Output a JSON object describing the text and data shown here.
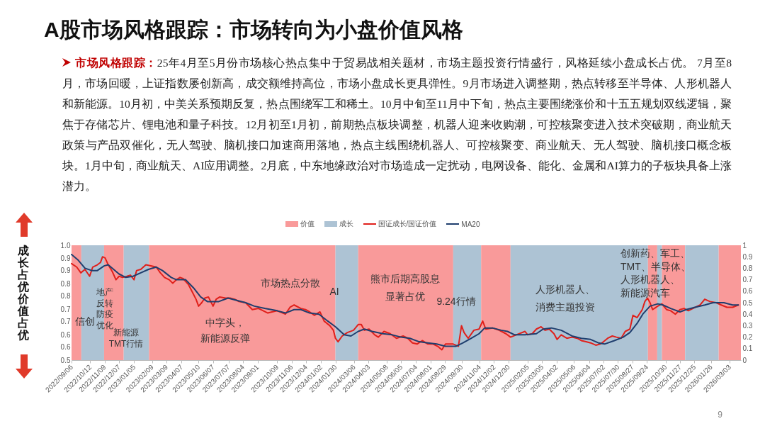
{
  "chart_data": {
    "type": "line",
    "title": "A股市场风格跟踪：市场转向为小盘价值风格",
    "subtitle": "市场风格跟踪：25年4月至5月份市场核心热点集中于贸易战相关题材，市场主题投资行情盛行，风格延续小盘成长占优。 7月至8月，市场回暖，上证指数屡创新高，成交额维持高位，市场小盘成长更具弹性。9月市场进入调整期，热点转移至半导体、人形机器人和新能源。10月初，中美关系预期反复，热点围绕军工和稀土。10月中旬至11月中下旬，热点主要围绕涨价和十五五规划双线逻辑，聚焦于存储芯片、锂电池和量子科技。12月初至1月初，前期热点板块调整，机器人迎来收购潮，可控核聚变进入技术突破期，商业航天政策与产品双催化，无人驾驶、脑机接口加速商用落地，热点主线围绕机器人、可控核聚变、商业航天、无人驾驶、脑机接口概念板块。1月中旬，商业航天、AI应用调整。2月底，中东地缘政治对市场造成一定扰动，电网设备、能化、金属和AI算力的子板块具备上涨潜力。",
    "ylabel": "成长占优价值占优",
    "xlim": [
      "2022-09-06",
      "2026-03-25"
    ],
    "xticks": [
      {
        "value": "2022-09-06",
        "label": "2022/09/06"
      },
      {
        "value": "2022-10-12",
        "label": "2022/10/12"
      },
      {
        "value": "2022-11-09",
        "label": "2022/11/09"
      },
      {
        "value": "2022-12-07",
        "label": "2022/12/07"
      },
      {
        "value": "2023-01-05",
        "label": "2023/01/05"
      },
      {
        "value": "2023-02-09",
        "label": "2023/02/09"
      },
      {
        "value": "2023-03-09",
        "label": "2023/03/09"
      },
      {
        "value": "2023-04-07",
        "label": "2023/04/07"
      },
      {
        "value": "2023-05-10",
        "label": "2023/05/10"
      },
      {
        "value": "2023-06-07",
        "label": "2023/06/07"
      },
      {
        "value": "2023-07-07",
        "label": "2023/07/07"
      },
      {
        "value": "2023-08-04",
        "label": "2023/08/04"
      },
      {
        "value": "2023-09-01",
        "label": "2023/09/01"
      },
      {
        "value": "2023-10-09",
        "label": "2023/10/09"
      },
      {
        "value": "2023-11-06",
        "label": "2023/11/06"
      },
      {
        "value": "2023-12-04",
        "label": "2023/12/04"
      },
      {
        "value": "2024-01-02",
        "label": "2024/01/02"
      },
      {
        "value": "2024-01-30",
        "label": "2024/01/30"
      },
      {
        "value": "2024-03-06",
        "label": "2024/03/06"
      },
      {
        "value": "2024-04-03",
        "label": "2024/04/03"
      },
      {
        "value": "2024-05-08",
        "label": "2024/05/08"
      },
      {
        "value": "2024-06-05",
        "label": "2024/06/05"
      },
      {
        "value": "2024-07-04",
        "label": "2024/07/04"
      },
      {
        "value": "2024-08-01",
        "label": "2024/08/01"
      },
      {
        "value": "2024-08-29",
        "label": "2024/08/29"
      },
      {
        "value": "2024-09-30",
        "label": "2024/09/30"
      },
      {
        "value": "2024-11-04",
        "label": "2024/11/04"
      },
      {
        "value": "2024-12-02",
        "label": "2024/12/02"
      },
      {
        "value": "2024-12-30",
        "label": "2024/12/30"
      },
      {
        "value": "2025-02-05",
        "label": "2025/02/05"
      },
      {
        "value": "2025-03-05",
        "label": "2025/03/05"
      },
      {
        "value": "2025-04-02",
        "label": "2025/04/02"
      },
      {
        "value": "2025-05-06",
        "label": "2025/05/06"
      },
      {
        "value": "2025-06-04",
        "label": "2025/06/04"
      },
      {
        "value": "2025-07-02",
        "label": "2025/07/02"
      },
      {
        "value": "2025-07-30",
        "label": "2025/07/30"
      },
      {
        "value": "2025-08-27",
        "label": "2025/08/27"
      },
      {
        "value": "2025-09-24",
        "label": "2025/09/24"
      },
      {
        "value": "2025-10-30",
        "label": "2025/10/30"
      },
      {
        "value": "2025-11-27",
        "label": "2025/11/27"
      },
      {
        "value": "2025-12-25",
        "label": "2025/12/25"
      },
      {
        "value": "2026-01-26",
        "label": "2026/01/26"
      },
      {
        "value": "2026-03-03",
        "label": "2026/03/03"
      }
    ],
    "ylim": [
      0.5,
      1.0
    ],
    "yticks": [
      0.5,
      {
        "value": 0.556,
        "label": "0.6"
      },
      {
        "value": 0.611,
        "label": "0.6"
      },
      {
        "value": 0.667,
        "label": "0.7"
      },
      {
        "value": 0.722,
        "label": "0.7"
      },
      {
        "value": 0.778,
        "label": "0.8"
      },
      {
        "value": 0.833,
        "label": "0.8"
      },
      {
        "value": 0.889,
        "label": "0.9"
      },
      {
        "value": 0.944,
        "label": "0.9"
      },
      {
        "value": 1.0,
        "label": "1.0"
      }
    ],
    "y2lim": [
      0,
      1
    ],
    "y2ticks": [
      0,
      0.1,
      0.2,
      0.3,
      0.4,
      0.5,
      0.6,
      0.7,
      0.8,
      0.9,
      1
    ],
    "legend": "top",
    "bands": [
      {
        "axis": "x",
        "from": "2022-09-06",
        "to": "2022-09-25",
        "label": "价值",
        "color": "#f99a9a"
      },
      {
        "axis": "x",
        "from": "2022-09-25",
        "to": "2022-11-08",
        "label": "成长",
        "color": "#adc3d4"
      },
      {
        "axis": "x",
        "from": "2022-11-08",
        "to": "2022-12-16",
        "color": "#f99a9a"
      },
      {
        "axis": "x",
        "from": "2022-12-16",
        "to": "2023-02-03",
        "color": "#adc3d4"
      },
      {
        "axis": "x",
        "from": "2023-02-03",
        "to": "2024-01-30",
        "color": "#f99a9a"
      },
      {
        "axis": "x",
        "from": "2024-01-30",
        "to": "2024-03-14",
        "color": "#adc3d4"
      },
      {
        "axis": "x",
        "from": "2024-03-14",
        "to": "2024-09-14",
        "color": "#f99a9a"
      },
      {
        "axis": "x",
        "from": "2024-09-14",
        "to": "2024-11-07",
        "color": "#adc3d4"
      },
      {
        "axis": "x",
        "from": "2024-11-07",
        "to": "2025-01-03",
        "color": "#f99a9a"
      },
      {
        "axis": "x",
        "from": "2025-01-03",
        "to": "2025-09-26",
        "color": "#adc3d4"
      },
      {
        "axis": "x",
        "from": "2025-09-26",
        "to": "2025-10-14",
        "color": "#f99a9a"
      },
      {
        "axis": "x",
        "from": "2025-10-14",
        "to": "2025-10-23",
        "color": "#adc3d4"
      },
      {
        "axis": "x",
        "from": "2025-10-23",
        "to": "2025-12-07",
        "color": "#f99a9a"
      },
      {
        "axis": "x",
        "from": "2025-12-07",
        "to": "2026-02-10",
        "color": "#adc3d4"
      },
      {
        "axis": "x",
        "from": "2026-02-10",
        "to": "2026-03-25",
        "color": "#f99a9a"
      }
    ],
    "annotations": [
      "信创",
      "地产反转防疫优化",
      "新能源TMT行情",
      "中字头，新能源反弹",
      "市场热点分散",
      "AI",
      "熊市后期高股息显著占优",
      "9.24行情",
      "人形机器人、消费主题投资",
      "创新药、军工、TMT、半导体、人形机器人、新能源汽车",
      "9"
    ],
    "series": [
      {
        "name": "国证成长/国证价值",
        "color": "#e0201b",
        "axis": "y2",
        "x": [
          "2022-09-06",
          "2022-09-16",
          "2022-09-24",
          "2022-10-02",
          "2022-10-11",
          "2022-10-17",
          "2022-10-26",
          "2022-11-01",
          "2022-11-05",
          "2022-11-10",
          "2022-11-16",
          "2022-11-24",
          "2022-12-01",
          "2022-12-07",
          "2022-12-14",
          "2022-12-22",
          "2022-12-29",
          "2023-01-05",
          "2023-01-10",
          "2023-01-18",
          "2023-01-28",
          "2023-02-08",
          "2023-02-17",
          "2023-02-25",
          "2023-03-05",
          "2023-03-14",
          "2023-03-21",
          "2023-03-28",
          "2023-04-04",
          "2023-04-10",
          "2023-04-20",
          "2023-04-27",
          "2023-05-05",
          "2023-05-10",
          "2023-05-16",
          "2023-05-22",
          "2023-05-29",
          "2023-06-07",
          "2023-06-13",
          "2023-06-20",
          "2023-07-01",
          "2023-07-10",
          "2023-07-19",
          "2023-07-27",
          "2023-08-09",
          "2023-08-22",
          "2023-09-03",
          "2023-09-21",
          "2023-10-09",
          "2023-10-25",
          "2023-11-03",
          "2023-11-11",
          "2023-11-24",
          "2023-12-03",
          "2023-12-11",
          "2023-12-20",
          "2023-12-31",
          "2024-01-08",
          "2024-01-19",
          "2024-01-26",
          "2024-01-30",
          "2024-02-04",
          "2024-02-12",
          "2024-02-22",
          "2024-03-05",
          "2024-03-14",
          "2024-03-20",
          "2024-03-26",
          "2024-04-04",
          "2024-04-15",
          "2024-04-22",
          "2024-05-03",
          "2024-05-15",
          "2024-05-27",
          "2024-06-09",
          "2024-06-18",
          "2024-06-27",
          "2024-07-06",
          "2024-07-16",
          "2024-07-27",
          "2024-08-06",
          "2024-08-15",
          "2024-08-23",
          "2024-08-30",
          "2024-09-14",
          "2024-09-24",
          "2024-09-30",
          "2024-10-05",
          "2024-10-13",
          "2024-10-24",
          "2024-11-03",
          "2024-11-10",
          "2024-11-16",
          "2024-11-29",
          "2024-12-12",
          "2024-12-25",
          "2025-01-03",
          "2025-01-14",
          "2025-01-31",
          "2025-02-05",
          "2025-02-14",
          "2025-02-22",
          "2025-03-03",
          "2025-03-11",
          "2025-03-19",
          "2025-03-28",
          "2025-04-03",
          "2025-04-11",
          "2025-04-22",
          "2025-05-02",
          "2025-05-12",
          "2025-05-20",
          "2025-05-29",
          "2025-06-07",
          "2025-06-17",
          "2025-06-26",
          "2025-07-02",
          "2025-07-10",
          "2025-07-19",
          "2025-07-27",
          "2025-08-05",
          "2025-08-13",
          "2025-08-22",
          "2025-08-28",
          "2025-09-05",
          "2025-09-15",
          "2025-09-20",
          "2025-09-25",
          "2025-09-30",
          "2025-10-05",
          "2025-10-15",
          "2025-10-23",
          "2025-11-01",
          "2025-11-09",
          "2025-11-18",
          "2025-11-27",
          "2025-12-05",
          "2025-12-13",
          "2025-12-22",
          "2026-01-05",
          "2026-01-14",
          "2026-01-24",
          "2026-02-05",
          "2026-02-15",
          "2026-02-26",
          "2026-03-09",
          "2026-03-20"
        ],
        "values": [
          0.84,
          0.81,
          0.76,
          0.79,
          0.73,
          0.81,
          0.83,
          0.85,
          0.9,
          0.89,
          0.83,
          0.77,
          0.7,
          0.73,
          0.72,
          0.73,
          0.74,
          0.7,
          0.78,
          0.79,
          0.83,
          0.82,
          0.81,
          0.76,
          0.72,
          0.7,
          0.67,
          0.7,
          0.72,
          0.71,
          0.66,
          0.6,
          0.53,
          0.47,
          0.5,
          0.54,
          0.55,
          0.47,
          0.53,
          0.55,
          0.54,
          0.54,
          0.53,
          0.51,
          0.5,
          0.44,
          0.45,
          0.41,
          0.43,
          0.4,
          0.46,
          0.48,
          0.45,
          0.44,
          0.42,
          0.39,
          0.42,
          0.34,
          0.3,
          0.26,
          0.19,
          0.16,
          0.21,
          0.24,
          0.26,
          0.31,
          0.31,
          0.26,
          0.27,
          0.22,
          0.2,
          0.25,
          0.23,
          0.19,
          0.21,
          0.19,
          0.15,
          0.14,
          0.17,
          0.14,
          0.14,
          0.12,
          0.09,
          0.14,
          0.14,
          0.12,
          0.3,
          0.24,
          0.19,
          0.26,
          0.27,
          0.34,
          0.27,
          0.28,
          0.26,
          0.23,
          0.2,
          0.22,
          0.25,
          0.22,
          0.23,
          0.27,
          0.29,
          0.26,
          0.27,
          0.23,
          0.18,
          0.22,
          0.19,
          0.2,
          0.19,
          0.17,
          0.16,
          0.15,
          0.13,
          0.14,
          0.16,
          0.19,
          0.21,
          0.2,
          0.19,
          0.25,
          0.27,
          0.39,
          0.37,
          0.44,
          0.51,
          0.54,
          0.5,
          0.44,
          0.47,
          0.49,
          0.44,
          0.43,
          0.4,
          0.44,
          0.45,
          0.43,
          0.45,
          0.48,
          0.53,
          0.51,
          0.5,
          0.48,
          0.46,
          0.46,
          0.48
        ]
      },
      {
        "name": "MA20",
        "color": "#1f3e6e",
        "axis": "y2",
        "x": [
          "2022-09-06",
          "2022-09-19",
          "2022-10-02",
          "2022-10-15",
          "2022-10-26",
          "2022-11-08",
          "2022-11-16",
          "2022-11-24",
          "2022-12-07",
          "2022-12-20",
          "2023-01-03",
          "2023-01-18",
          "2023-02-02",
          "2023-02-17",
          "2023-03-01",
          "2023-03-18",
          "2023-03-28",
          "2023-04-15",
          "2023-04-30",
          "2023-05-14",
          "2023-05-27",
          "2023-06-18",
          "2023-07-06",
          "2023-07-23",
          "2023-08-09",
          "2023-08-26",
          "2023-09-15",
          "2023-10-09",
          "2023-10-25",
          "2023-11-11",
          "2023-11-24",
          "2023-12-11",
          "2023-12-29",
          "2024-01-15",
          "2024-01-30",
          "2024-02-16",
          "2024-02-29",
          "2024-03-14",
          "2024-03-26",
          "2024-04-10",
          "2024-05-01",
          "2024-05-19",
          "2024-06-05",
          "2024-06-22",
          "2024-07-10",
          "2024-07-27",
          "2024-08-13",
          "2024-08-30",
          "2024-09-19",
          "2024-10-03",
          "2024-10-19",
          "2024-11-03",
          "2024-11-14",
          "2024-11-29",
          "2024-12-16",
          "2024-12-28",
          "2025-01-11",
          "2025-01-31",
          "2025-02-22",
          "2025-03-07",
          "2025-03-23",
          "2025-04-11",
          "2025-05-02",
          "2025-05-20",
          "2025-06-07",
          "2025-06-22",
          "2025-07-04",
          "2025-07-23",
          "2025-08-09",
          "2025-08-22",
          "2025-09-05",
          "2025-09-16",
          "2025-09-30",
          "2025-10-15",
          "2025-10-25",
          "2025-11-09",
          "2025-11-27",
          "2025-12-09",
          "2025-12-26",
          "2026-01-14",
          "2026-01-30",
          "2026-02-20",
          "2026-03-09",
          "2026-03-20"
        ],
        "values": [
          0.92,
          0.87,
          0.8,
          0.78,
          0.78,
          0.82,
          0.83,
          0.8,
          0.75,
          0.72,
          0.73,
          0.76,
          0.79,
          0.81,
          0.78,
          0.72,
          0.7,
          0.7,
          0.63,
          0.55,
          0.51,
          0.51,
          0.54,
          0.52,
          0.5,
          0.47,
          0.45,
          0.43,
          0.41,
          0.44,
          0.44,
          0.41,
          0.4,
          0.34,
          0.29,
          0.22,
          0.21,
          0.25,
          0.27,
          0.25,
          0.23,
          0.22,
          0.2,
          0.19,
          0.16,
          0.15,
          0.14,
          0.12,
          0.12,
          0.15,
          0.19,
          0.23,
          0.28,
          0.28,
          0.26,
          0.25,
          0.22,
          0.22,
          0.23,
          0.27,
          0.28,
          0.26,
          0.21,
          0.19,
          0.18,
          0.15,
          0.14,
          0.17,
          0.2,
          0.24,
          0.32,
          0.4,
          0.47,
          0.49,
          0.48,
          0.45,
          0.42,
          0.44,
          0.46,
          0.48,
          0.5,
          0.5,
          0.48,
          0.48
        ]
      }
    ]
  }
}
